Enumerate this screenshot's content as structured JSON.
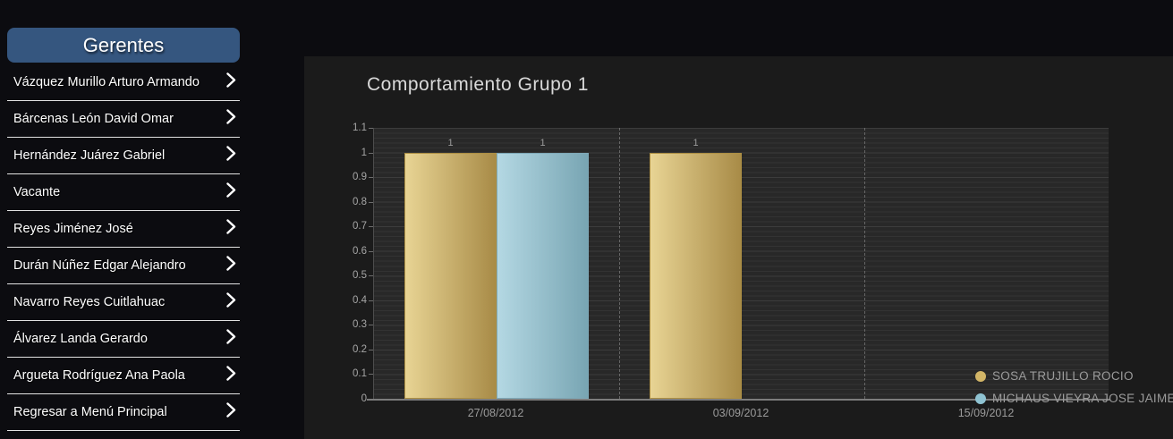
{
  "sidebar": {
    "header": "Gerentes",
    "items": [
      "Vázquez Murillo Arturo Armando",
      "Bárcenas León David Omar",
      "Hernández Juárez Gabriel",
      "Vacante",
      "Reyes Jiménez José",
      "Durán Núñez Edgar Alejandro",
      "Navarro Reyes Cuitlahuac",
      "Álvarez Landa Gerardo",
      "Argueta Rodríguez Ana Paola",
      "Regresar a Menú Principal"
    ]
  },
  "chart": {
    "title": "Comportamiento Grupo 1"
  },
  "chart_data": {
    "type": "bar",
    "title": "Comportamiento Grupo 1",
    "categories": [
      "27/08/2012",
      "03/09/2012",
      "15/09/2012"
    ],
    "series": [
      {
        "name": "SOSA TRUJILLO ROCIO",
        "values": [
          1,
          1,
          null
        ],
        "color": "#d2b567",
        "gradient": [
          "#e8d494",
          "#a88b47"
        ],
        "border": "#ad8f43"
      },
      {
        "name": "MICHAUS VIEYRA JOSE JAIME",
        "values": [
          1,
          null,
          null
        ],
        "color": "#8fc3d2",
        "gradient": [
          "#b4d8e3",
          "#78a5b3"
        ],
        "border": "#7fa9b8"
      }
    ],
    "ylim": [
      0,
      1.1
    ],
    "yticks": [
      0,
      0.1,
      0.2,
      0.3,
      0.4,
      0.5,
      0.6,
      0.7,
      0.8,
      0.9,
      1,
      1.1
    ],
    "bar_value_labels": true,
    "grid": true,
    "legend_position": "bottom-right"
  },
  "colors": {
    "page_bg": "#0c0c10",
    "panel_bg": "#1b1b1b",
    "sidebar_header_bg": "#35567f",
    "sidebar_item_text": "#ffffff",
    "divider": "#e3e3e3",
    "axis_text": "#a6a6a6",
    "title_text": "#d9d9d9",
    "legend_text": "#9b9b9b"
  }
}
